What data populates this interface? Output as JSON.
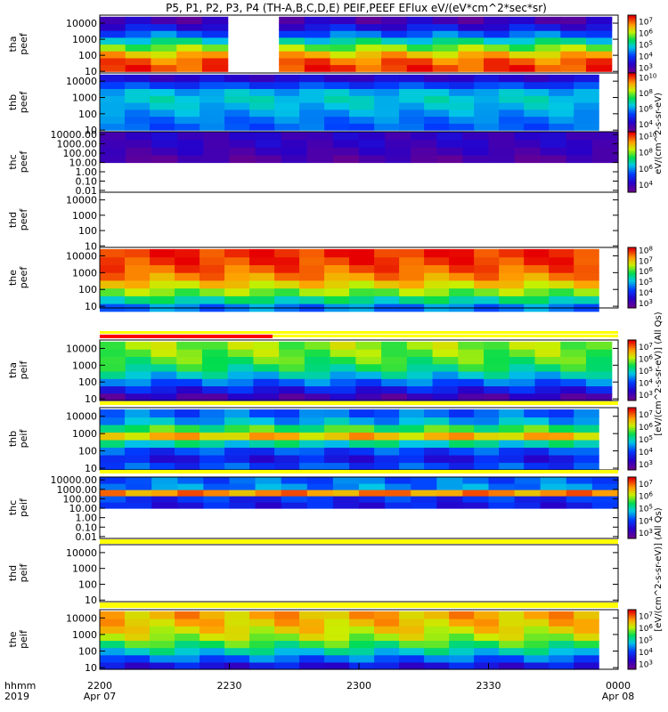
{
  "chart_data": {
    "type": "heatmap",
    "title": "P5, P1, P2, P3, P4 (TH-A,B,C,D,E) PEIF,PEEF EFlux eV/(eV*cm^2*sec*sr)",
    "time_axis": {
      "label_line1": "hhmm",
      "label_line2": "2019",
      "ticks": [
        {
          "hhmm": "2200",
          "date": "Apr 07",
          "minutes": 0
        },
        {
          "hhmm": "2230",
          "date": "",
          "minutes": 30
        },
        {
          "hhmm": "2300",
          "date": "",
          "minutes": 60
        },
        {
          "hhmm": "2330",
          "date": "",
          "minutes": 90
        },
        {
          "hhmm": "0000",
          "date": "Apr 08",
          "minutes": 120
        }
      ],
      "range_minutes": [
        0,
        120
      ]
    },
    "colorscale": "rainbow (purple-blue-green-yellow-red)",
    "colorbar_units": "[eV/(cm^2-s-sr-eV)]",
    "panels": [
      {
        "probe": "tha",
        "product": "peef",
        "ylabel": [
          "tha",
          "peef"
        ],
        "yticks": [
          "10",
          "100",
          "1000",
          "10000"
        ],
        "ylog_range": [
          0.9,
          4.5
        ],
        "colorbar": true,
        "cbar_ticks": [
          "10^3",
          "10^4",
          "10^5",
          "10^6",
          "10^7"
        ],
        "cbar_log_range": [
          2.5,
          7.5
        ],
        "data_end_minutes": 118.5,
        "gap_minutes": [
          32,
          41
        ],
        "profile": [
          7.2,
          7.0,
          6.5,
          5.8,
          5.0,
          4.2,
          3.5,
          3.0
        ],
        "energy_log_bins": [
          1.0,
          4.4
        ]
      },
      {
        "probe": "thb",
        "product": "peef",
        "ylabel": [
          "thb",
          "peef"
        ],
        "yticks": [
          "10",
          "100",
          "1000",
          "10000"
        ],
        "ylog_range": [
          0.9,
          4.5
        ],
        "colorbar": true,
        "cbar_ticks": [
          "10^4",
          "10^6",
          "10^8",
          "10^10"
        ],
        "cbar_log_range": [
          3.0,
          10.5
        ],
        "data_end_minutes": 115.5,
        "profile": [
          5.5,
          5.7,
          6.0,
          6.3,
          6.5,
          6.2,
          5.2,
          4.2
        ],
        "energy_log_bins": [
          1.0,
          4.4
        ]
      },
      {
        "probe": "thc",
        "product": "peef",
        "ylabel": [
          "thc",
          "peef"
        ],
        "yticks": [
          "0.01",
          "0.10",
          "1.00",
          "10.00",
          "100.00",
          "1000.00",
          "10000.00"
        ],
        "ylog_range": [
          -2.2,
          4.3
        ],
        "colorbar": true,
        "cbar_ticks": [
          "10^4",
          "10^6",
          "10^8",
          "10^10"
        ],
        "cbar_log_range": [
          3.0,
          10.5
        ],
        "data_end_minutes": 120,
        "profile": [
          3.5,
          3.8,
          4.0,
          4.0
        ],
        "energy_log_bins": [
          1.0,
          4.3
        ]
      },
      {
        "probe": "thd",
        "product": "peef",
        "ylabel": [
          "thd",
          "peef"
        ],
        "yticks": [
          "10",
          "100",
          "1000",
          "10000"
        ],
        "ylog_range": [
          0.9,
          4.5
        ],
        "colorbar": false
      },
      {
        "probe": "the",
        "product": "peef",
        "ylabel": [
          "the",
          "peef"
        ],
        "yticks": [
          "10",
          "100",
          "1000",
          "10000"
        ],
        "ylog_range": [
          0.9,
          4.5
        ],
        "colorbar": true,
        "cbar_ticks": [
          "10^3",
          "10^4",
          "10^5",
          "10^6",
          "10^7",
          "10^8"
        ],
        "cbar_log_range": [
          2.5,
          8.2
        ],
        "data_end_minutes": 115.5,
        "profile": [
          4.6,
          5.5,
          6.3,
          6.9,
          7.4,
          7.7,
          7.9,
          8.0
        ],
        "energy_log_bins": [
          0.7,
          4.4
        ]
      },
      {
        "probe": "tha",
        "product": "peif",
        "ylabel": [
          "tha",
          "peif"
        ],
        "yticks": [
          "10",
          "100",
          "1000",
          "10000"
        ],
        "ylog_range": [
          0.9,
          4.5
        ],
        "colorbar": true,
        "cbar_ticks": [
          "10^3",
          "10^4",
          "10^5",
          "10^6",
          "10^7"
        ],
        "cbar_log_range": [
          2.5,
          7.5
        ],
        "data_end_minutes": 118.5,
        "profile": [
          3.0,
          3.6,
          4.2,
          4.8,
          5.3,
          5.6,
          5.8,
          5.9
        ],
        "energy_log_bins": [
          0.9,
          4.4
        ]
      },
      {
        "probe": "thb",
        "product": "peif",
        "ylabel": [
          "thb",
          "peif"
        ],
        "yticks": [
          "10",
          "100",
          "1000",
          "10000"
        ],
        "ylog_range": [
          0.9,
          4.5
        ],
        "colorbar": true,
        "cbar_ticks": [
          "10^3",
          "10^4",
          "10^5",
          "10^6",
          "10^7"
        ],
        "cbar_log_range": [
          2.5,
          7.5
        ],
        "data_end_minutes": 115.5,
        "profile": [
          4.0,
          3.6,
          4.0,
          5.0,
          6.5,
          5.5,
          4.6,
          4.2
        ],
        "energy_log_bins": [
          0.9,
          4.4
        ]
      },
      {
        "probe": "thc",
        "product": "peif",
        "ylabel": [
          "thc",
          "peif"
        ],
        "yticks": [
          "0.01",
          "0.10",
          "1.00",
          "10.00",
          "100.00",
          "1000.00",
          "10000.00"
        ],
        "ylog_range": [
          -2.2,
          4.3
        ],
        "colorbar": true,
        "cbar_ticks": [
          "10^3",
          "10^4",
          "10^5",
          "10^6",
          "10^7"
        ],
        "cbar_log_range": [
          2.5,
          7.5
        ],
        "data_end_minutes": 120,
        "profile": [
          3.6,
          3.8,
          6.8,
          4.4,
          4.2
        ],
        "energy_log_bins": [
          1.0,
          4.3
        ]
      },
      {
        "probe": "thd",
        "product": "peif",
        "ylabel": [
          "thd",
          "peif"
        ],
        "yticks": [
          "10",
          "100",
          "1000",
          "10000"
        ],
        "ylog_range": [
          0.9,
          4.5
        ],
        "colorbar": false
      },
      {
        "probe": "the",
        "product": "peif",
        "ylabel": [
          "the",
          "peif"
        ],
        "yticks": [
          "10",
          "100",
          "1000",
          "10000"
        ],
        "ylog_range": [
          0.9,
          4.5
        ],
        "colorbar": true,
        "cbar_ticks": [
          "10^3",
          "10^4",
          "10^5",
          "10^6",
          "10^7"
        ],
        "cbar_log_range": [
          2.5,
          7.5
        ],
        "data_end_minutes": 115.5,
        "profile": [
          3.5,
          4.2,
          4.9,
          5.5,
          6.0,
          6.3,
          6.5,
          6.6
        ],
        "energy_log_bins": [
          0.9,
          4.4
        ]
      }
    ],
    "colorbar_titles": [
      "eV/(cm^2-s-sr-eV)",
      "[eV/(cm^2-s-sr-eV)] (All Qs)",
      "[eV/(cm^2-s-sr-eV)] (All Qs)"
    ],
    "status_bar_colors": {
      "yellow": "#ffff00",
      "red": "#ff0000"
    }
  }
}
